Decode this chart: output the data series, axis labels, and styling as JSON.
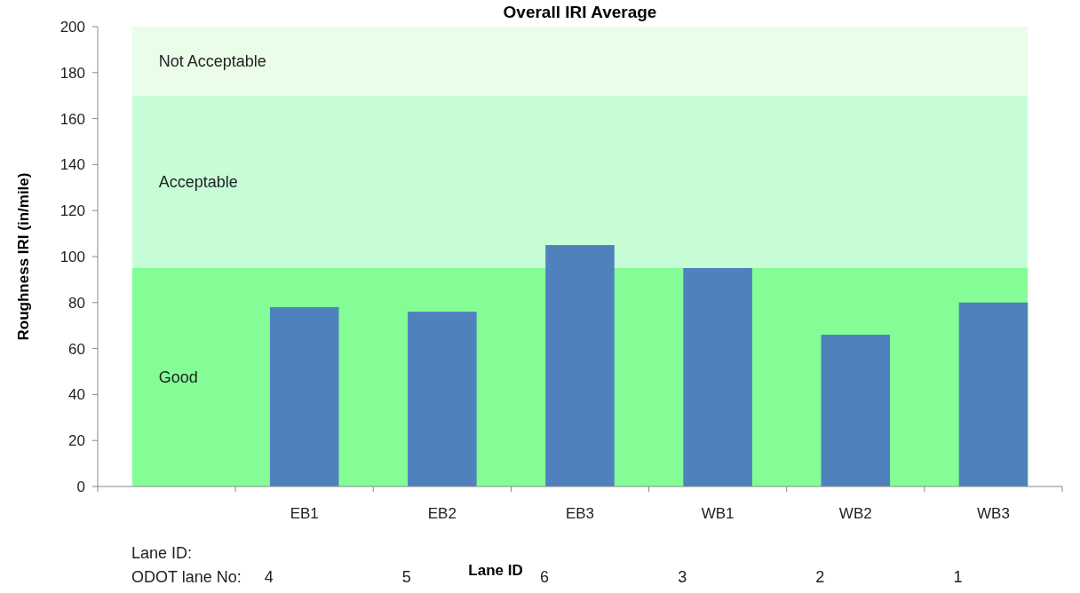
{
  "chart_data": {
    "type": "bar",
    "title": "Overall IRI Average",
    "xlabel": "Lane ID",
    "ylabel": "Roughness IRI (in/mile)",
    "categories": [
      null,
      "EB1",
      "EB2",
      "EB3",
      "WB1",
      "WB2",
      "WB3"
    ],
    "values": [
      null,
      78,
      76,
      105,
      95,
      66,
      80
    ],
    "color": "#4f81bd",
    "ylim": [
      0,
      200
    ],
    "yticks": [
      0,
      20,
      40,
      60,
      80,
      100,
      120,
      140,
      160,
      180,
      200
    ],
    "grid": false,
    "bands": [
      {
        "axis": "y",
        "from": 0,
        "to": 95,
        "label": "Good",
        "color": "#84fd96"
      },
      {
        "axis": "y",
        "from": 95,
        "to": 170,
        "label": "Acceptable",
        "color": "#c6fdd6"
      },
      {
        "axis": "y",
        "from": 170,
        "to": 200,
        "label": "Not Acceptable",
        "color": "#e9fde9"
      }
    ],
    "annotations": [
      "Lane ID:",
      "ODOT lane No:",
      "4",
      "5",
      "6",
      "3",
      "2",
      "1"
    ]
  }
}
